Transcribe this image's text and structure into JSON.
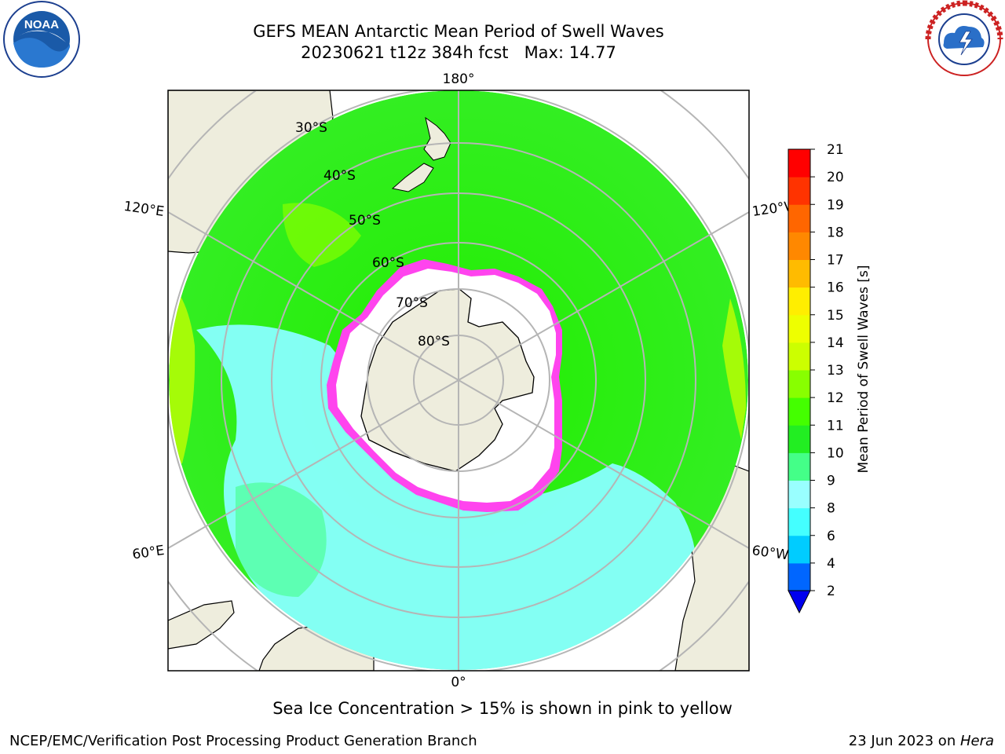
{
  "header": {
    "title_line1": "GEFS MEAN Antarctic Mean Period of Swell Waves",
    "title_line2": "20230621 t12z 384h fcst   Max: 14.77"
  },
  "logos": {
    "left": {
      "icon": "noaa-logo",
      "lettering": "NATIONAL OCEANIC AND ATMOSPHERIC ADMINISTRATION · U.S. DEPARTMENT OF COMMERCE · NOAA"
    },
    "right": {
      "icon": "nws-logo",
      "lettering": "NATIONAL WEATHER SERVICE"
    }
  },
  "map": {
    "projection": "south-polar-stereographic",
    "longitude_labels": {
      "top": "180°",
      "bottom": "0°",
      "left_upper": "120°E",
      "right_upper": "120°W",
      "left_lower": "60°E",
      "right_lower": "60°W"
    },
    "latitude_labels": [
      "30°S",
      "40°S",
      "50°S",
      "60°S",
      "70°S",
      "80°S"
    ],
    "colors": {
      "land": "#eeeddd",
      "ocean_green": "#22ee00",
      "ocean_cyan": "#88ffff",
      "ice_interior": "#ffffff",
      "ice_edge": "#ff44ee",
      "grid": "#b5b5b5"
    }
  },
  "colorbar": {
    "label": "Mean Period of Swell Waves [s]",
    "ticks": [
      "2",
      "4",
      "6",
      "8",
      "9",
      "10",
      "11",
      "12",
      "13",
      "14",
      "15",
      "16",
      "17",
      "18",
      "19",
      "20",
      "21"
    ],
    "colors": [
      "#0066ff",
      "#00ccff",
      "#44ffff",
      "#99ffff",
      "#44ff88",
      "#22ee22",
      "#44ff00",
      "#88ff00",
      "#ccff00",
      "#eeff00",
      "#ffee00",
      "#ffbb00",
      "#ff8800",
      "#ff6600",
      "#ff3300",
      "#ff0000"
    ],
    "under_color": "#0000ee"
  },
  "footer": {
    "ice_note": "Sea Ice Concentration > 15% is shown in pink to yellow",
    "credit": "NCEP/EMC/Verification Post Processing Product Generation Branch",
    "date_prefix": "23 Jun 2023 on ",
    "host": "Hera"
  }
}
